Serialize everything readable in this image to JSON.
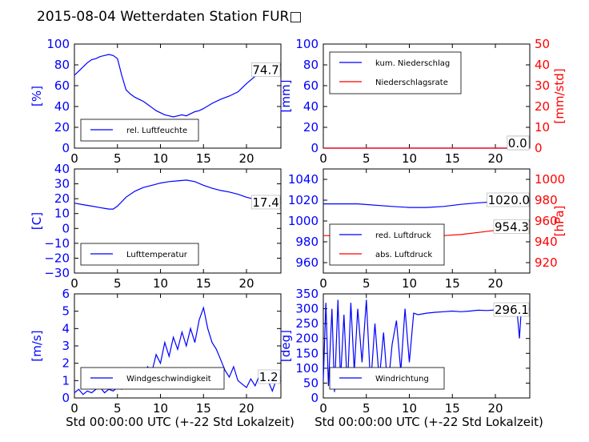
{
  "title": "2015-08-04 Wetterdaten Station FUR□",
  "chart_data": [
    {
      "type": "line",
      "panel": "top-left",
      "ylabel": "[%]",
      "xlim": [
        0,
        24
      ],
      "ylim": [
        0,
        100
      ],
      "xticks": [
        "0",
        "5",
        "10",
        "15",
        "20"
      ],
      "yticks": [
        "0",
        "20",
        "40",
        "60",
        "80",
        "100"
      ],
      "annotation": "74.7",
      "legend": "bottom-left",
      "series": [
        {
          "name": "rel. Luftfeuchte",
          "color": "#0000ff",
          "x": [
            0,
            0.5,
            1,
            1.5,
            2,
            2.5,
            3,
            3.5,
            4,
            4.5,
            5,
            5.5,
            6,
            6.5,
            7,
            7.5,
            8,
            8.5,
            9,
            9.5,
            10,
            10.5,
            11,
            11.5,
            12,
            12.5,
            13,
            13.5,
            14,
            14.5,
            15,
            16,
            17,
            18,
            19,
            20,
            21,
            22,
            23,
            24
          ],
          "y": [
            70,
            74,
            78,
            82,
            85,
            86,
            88,
            89,
            90,
            89,
            86,
            70,
            56,
            52,
            49,
            47,
            45,
            42,
            39,
            36,
            34,
            32,
            31,
            30,
            31,
            32,
            31,
            33,
            35,
            36,
            38,
            43,
            47,
            50,
            54,
            62,
            69,
            72,
            74,
            75
          ]
        }
      ]
    },
    {
      "type": "line",
      "panel": "top-right",
      "ylabel": "[mm]",
      "ylabel_right": "[mm/std]",
      "xlim": [
        0,
        24
      ],
      "ylim": [
        0,
        100
      ],
      "ylim_right": [
        0,
        50
      ],
      "xticks": [
        "0",
        "5",
        "10",
        "15",
        "20"
      ],
      "yticks": [
        "0",
        "20",
        "40",
        "60",
        "80",
        "100"
      ],
      "yticks_right": [
        "0",
        "10",
        "20",
        "30",
        "40",
        "50"
      ],
      "annotation": "0.0",
      "annotation2": "0.0",
      "legend": "top-left",
      "series": [
        {
          "name": "kum. Niederschlag",
          "color": "#0000ff",
          "x": [
            0,
            24
          ],
          "y": [
            0,
            0
          ]
        },
        {
          "name": "Niederschlagsrate",
          "color": "#ff0000",
          "x": [
            0,
            24
          ],
          "y": [
            0,
            0
          ]
        }
      ]
    },
    {
      "type": "line",
      "panel": "middle-left",
      "ylabel": "[C]",
      "xlim": [
        0,
        24
      ],
      "ylim": [
        -30,
        40
      ],
      "xticks": [
        "0",
        "5",
        "10",
        "15",
        "20"
      ],
      "yticks": [
        "−30",
        "−20",
        "−10",
        "0",
        "10",
        "20",
        "30",
        "40"
      ],
      "annotation": "17.4",
      "legend": "bottom-left",
      "series": [
        {
          "name": "Lufttemperatur",
          "color": "#0000ff",
          "x": [
            0,
            1,
            2,
            3,
            4,
            4.5,
            5,
            6,
            7,
            8,
            9,
            10,
            11,
            12,
            13,
            14,
            15,
            16,
            17,
            18,
            19,
            20,
            21,
            22,
            23,
            24
          ],
          "y": [
            17,
            16,
            15,
            14,
            13,
            13,
            15,
            21,
            25,
            27.5,
            29,
            30.5,
            31.5,
            32,
            32.5,
            31.5,
            29,
            27,
            25.5,
            24.5,
            23,
            21,
            19.5,
            18.5,
            17.5,
            17.4
          ]
        }
      ]
    },
    {
      "type": "line",
      "panel": "middle-right",
      "ylabel_right": "[hPa]",
      "xlim": [
        0,
        24
      ],
      "ylim": [
        950,
        1050
      ],
      "ylim_right": [
        910,
        1010
      ],
      "xticks": [
        "0",
        "5",
        "10",
        "15",
        "20"
      ],
      "yticks": [
        "960",
        "980",
        "1000",
        "1020",
        "1040"
      ],
      "yticks_right": [
        "920",
        "940",
        "960",
        "980",
        "1000"
      ],
      "annotation": "1020.0",
      "annotation2": "954.3",
      "legend": "bottom-left",
      "series": [
        {
          "name": "red. Luftdruck",
          "color": "#0000ff",
          "x": [
            0,
            4,
            8,
            10,
            12,
            14,
            16,
            18,
            20,
            22,
            24
          ],
          "y": [
            1016.5,
            1016.5,
            1014,
            1013,
            1013,
            1014,
            1016,
            1017.5,
            1018.5,
            1019.5,
            1020
          ]
        },
        {
          "name": "abs. Luftdruck",
          "color": "#ff0000",
          "x": [
            0,
            4,
            8,
            10,
            12,
            14,
            16,
            18,
            20,
            22,
            24
          ],
          "y": [
            946,
            945.5,
            945.5,
            945.5,
            946,
            946,
            947,
            949,
            951,
            953,
            954.3
          ]
        }
      ]
    },
    {
      "type": "line",
      "panel": "bottom-left",
      "ylabel": "[m/s]",
      "xlabel": "Std 00:00:00 UTC (+-22 Std Lokalzeit)",
      "xlim": [
        0,
        24
      ],
      "ylim": [
        0,
        6
      ],
      "xticks": [
        "0",
        "5",
        "10",
        "15",
        "20"
      ],
      "yticks": [
        "0",
        "1",
        "2",
        "3",
        "4",
        "5",
        "6"
      ],
      "annotation": "1.2",
      "legend": "bottom-center",
      "series": [
        {
          "name": "Windgeschwindigkeit",
          "color": "#0000ff",
          "x": [
            0,
            0.5,
            1,
            1.5,
            2,
            2.5,
            3,
            3.5,
            4,
            4.5,
            5,
            5.5,
            6,
            6.5,
            7,
            7.5,
            8,
            8.5,
            9,
            9.5,
            10,
            10.5,
            11,
            11.5,
            12,
            12.5,
            13,
            13.5,
            14,
            14.5,
            15,
            15.5,
            16,
            16.5,
            17,
            17.5,
            18,
            18.5,
            19,
            19.5,
            20,
            20.5,
            21,
            21.5,
            22,
            22.5,
            23,
            23.5,
            24
          ],
          "y": [
            0.3,
            0.5,
            0.2,
            0.4,
            0.3,
            0.5,
            0.6,
            0.3,
            0.5,
            0.4,
            0.6,
            0.5,
            0.7,
            0.8,
            0.9,
            1.2,
            1.0,
            1.8,
            1.5,
            2.5,
            2.0,
            3.2,
            2.4,
            3.5,
            2.8,
            3.8,
            3.0,
            4.0,
            3.2,
            4.5,
            5.2,
            4.0,
            3.2,
            2.8,
            2.2,
            1.6,
            1.2,
            1.8,
            1.0,
            0.8,
            0.6,
            1.1,
            0.7,
            1.3,
            1.5,
            1.0,
            0.4,
            1.1,
            1.2
          ]
        }
      ]
    },
    {
      "type": "line",
      "panel": "bottom-right",
      "ylabel": "[deg]",
      "xlabel": "Std 00:00:00 UTC (+-22 Std Lokalzeit)",
      "xlim": [
        0,
        24
      ],
      "ylim": [
        0,
        350
      ],
      "xticks": [
        "0",
        "5",
        "10",
        "15",
        "20"
      ],
      "yticks": [
        "0",
        "50",
        "100",
        "150",
        "200",
        "250",
        "300",
        "350"
      ],
      "annotation": "296.1",
      "legend": "bottom-left",
      "series": [
        {
          "name": "Windrichtung",
          "color": "#0000ff",
          "x": [
            0,
            0.3,
            0.6,
            1,
            1.3,
            1.7,
            2,
            2.4,
            2.8,
            3.2,
            3.6,
            4,
            4.5,
            5,
            5.5,
            6,
            6.5,
            7,
            7.5,
            8,
            8.5,
            9,
            9.5,
            10,
            10.5,
            11,
            12,
            13,
            14,
            15,
            16,
            17,
            18,
            19,
            20,
            21,
            22,
            22.5,
            22.8,
            23,
            23.5,
            24
          ],
          "y": [
            60,
            320,
            40,
            300,
            20,
            330,
            60,
            280,
            30,
            320,
            90,
            300,
            120,
            330,
            40,
            250,
            60,
            220,
            30,
            180,
            260,
            90,
            300,
            120,
            285,
            280,
            285,
            288,
            290,
            292,
            290,
            292,
            295,
            294,
            296,
            297,
            298,
            300,
            200,
            295,
            296,
            296
          ]
        }
      ]
    }
  ]
}
